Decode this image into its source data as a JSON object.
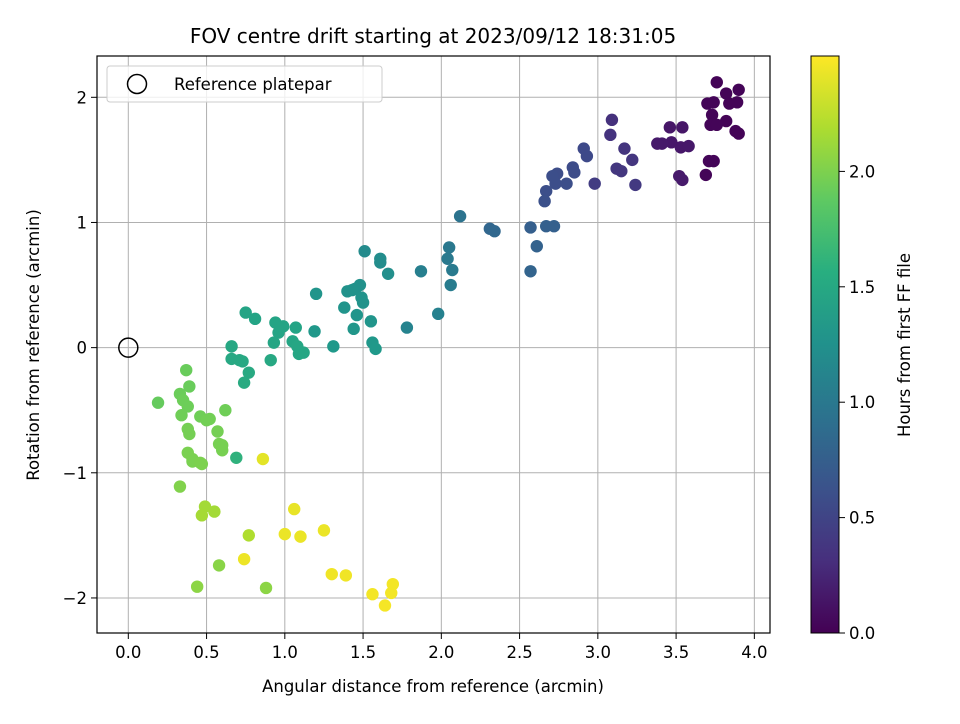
{
  "chart_data": {
    "type": "scatter",
    "title": "FOV centre drift starting at 2023/09/12 18:31:05",
    "xlabel": "Angular distance from reference (arcmin)",
    "ylabel": "Rotation from reference (arcmin)",
    "xlim": [
      -0.2,
      4.1
    ],
    "ylim": [
      -2.28,
      2.33
    ],
    "x_ticks": [
      0.0,
      0.5,
      1.0,
      1.5,
      2.0,
      2.5,
      3.0,
      3.5,
      4.0
    ],
    "x_tick_labels": [
      "0.0",
      "0.5",
      "1.0",
      "1.5",
      "2.0",
      "2.5",
      "3.0",
      "3.5",
      "4.0"
    ],
    "y_ticks": [
      -2,
      -1,
      0,
      1,
      2
    ],
    "y_tick_labels": [
      "−2",
      "−1",
      "0",
      "1",
      "2"
    ],
    "grid": true,
    "legend": {
      "position": "top-left",
      "entries": [
        "Reference platepar"
      ]
    },
    "reference_point": {
      "x": 0.0,
      "y": 0.0
    },
    "colorbar": {
      "label": "Hours from first FF file",
      "colormap": "viridis",
      "range": [
        0.0,
        2.5
      ],
      "ticks": [
        0.0,
        0.5,
        1.0,
        1.5,
        2.0
      ],
      "tick_labels": [
        "0.0",
        "0.5",
        "1.0",
        "1.5",
        "2.0"
      ]
    },
    "points": [
      [
        3.76,
        2.12,
        0.02
      ],
      [
        3.9,
        2.06,
        0.02
      ],
      [
        3.82,
        2.03,
        0.02
      ],
      [
        3.7,
        1.95,
        0.03
      ],
      [
        3.74,
        1.96,
        0.03
      ],
      [
        3.84,
        1.95,
        0.02
      ],
      [
        3.89,
        1.96,
        0.02
      ],
      [
        3.73,
        1.86,
        0.03
      ],
      [
        3.72,
        1.78,
        0.03
      ],
      [
        3.82,
        1.81,
        0.02
      ],
      [
        3.76,
        1.78,
        0.03
      ],
      [
        3.88,
        1.73,
        0.02
      ],
      [
        3.9,
        1.71,
        0.02
      ],
      [
        3.71,
        1.49,
        0.03
      ],
      [
        3.74,
        1.49,
        0.03
      ],
      [
        3.69,
        1.38,
        0.03
      ],
      [
        3.54,
        1.76,
        0.15
      ],
      [
        3.46,
        1.76,
        0.15
      ],
      [
        3.47,
        1.64,
        0.16
      ],
      [
        3.41,
        1.63,
        0.17
      ],
      [
        3.38,
        1.63,
        0.17
      ],
      [
        3.53,
        1.6,
        0.16
      ],
      [
        3.58,
        1.61,
        0.16
      ],
      [
        3.52,
        1.37,
        0.18
      ],
      [
        3.54,
        1.34,
        0.18
      ],
      [
        3.09,
        1.82,
        0.35
      ],
      [
        3.08,
        1.7,
        0.37
      ],
      [
        3.17,
        1.59,
        0.38
      ],
      [
        3.22,
        1.5,
        0.39
      ],
      [
        3.12,
        1.43,
        0.4
      ],
      [
        3.15,
        1.41,
        0.4
      ],
      [
        3.24,
        1.3,
        0.42
      ],
      [
        2.98,
        1.31,
        0.44
      ],
      [
        2.91,
        1.59,
        0.55
      ],
      [
        2.93,
        1.53,
        0.55
      ],
      [
        2.84,
        1.44,
        0.57
      ],
      [
        2.85,
        1.4,
        0.57
      ],
      [
        2.74,
        1.39,
        0.58
      ],
      [
        2.71,
        1.37,
        0.59
      ],
      [
        2.8,
        1.31,
        0.59
      ],
      [
        2.73,
        1.31,
        0.59
      ],
      [
        2.67,
        1.25,
        0.6
      ],
      [
        2.66,
        1.17,
        0.61
      ],
      [
        2.57,
        0.96,
        0.75
      ],
      [
        2.67,
        0.97,
        0.76
      ],
      [
        2.72,
        0.97,
        0.76
      ],
      [
        2.61,
        0.81,
        0.78
      ],
      [
        2.57,
        0.61,
        0.8
      ],
      [
        2.31,
        0.95,
        0.82
      ],
      [
        2.34,
        0.93,
        0.83
      ],
      [
        2.12,
        1.05,
        0.95
      ],
      [
        2.05,
        0.8,
        1.0
      ],
      [
        2.04,
        0.71,
        1.02
      ],
      [
        2.07,
        0.62,
        1.03
      ],
      [
        2.06,
        0.5,
        1.05
      ],
      [
        1.87,
        0.61,
        1.08
      ],
      [
        1.98,
        0.27,
        1.1
      ],
      [
        1.78,
        0.16,
        1.12
      ],
      [
        1.51,
        0.77,
        1.2
      ],
      [
        1.61,
        0.71,
        1.22
      ],
      [
        1.61,
        0.68,
        1.22
      ],
      [
        1.66,
        0.59,
        1.24
      ],
      [
        1.48,
        0.5,
        1.26
      ],
      [
        1.45,
        0.47,
        1.26
      ],
      [
        1.43,
        0.46,
        1.27
      ],
      [
        1.4,
        0.45,
        1.27
      ],
      [
        1.49,
        0.4,
        1.28
      ],
      [
        1.5,
        0.36,
        1.28
      ],
      [
        1.38,
        0.32,
        1.29
      ],
      [
        1.46,
        0.26,
        1.3
      ],
      [
        1.55,
        0.21,
        1.3
      ],
      [
        1.44,
        0.15,
        1.31
      ],
      [
        1.2,
        0.43,
        1.3
      ],
      [
        1.19,
        0.13,
        1.33
      ],
      [
        1.31,
        0.01,
        1.34
      ],
      [
        1.56,
        0.04,
        1.33
      ],
      [
        1.58,
        -0.01,
        1.34
      ],
      [
        0.75,
        0.28,
        1.45
      ],
      [
        0.81,
        0.23,
        1.45
      ],
      [
        0.94,
        0.2,
        1.45
      ],
      [
        0.99,
        0.17,
        1.45
      ],
      [
        0.96,
        0.12,
        1.46
      ],
      [
        1.07,
        0.16,
        1.45
      ],
      [
        0.93,
        0.04,
        1.47
      ],
      [
        1.05,
        0.05,
        1.47
      ],
      [
        1.08,
        0.01,
        1.48
      ],
      [
        1.12,
        -0.04,
        1.48
      ],
      [
        1.09,
        -0.05,
        1.48
      ],
      [
        0.66,
        0.01,
        1.49
      ],
      [
        0.66,
        -0.09,
        1.5
      ],
      [
        0.71,
        -0.1,
        1.5
      ],
      [
        0.73,
        -0.11,
        1.5
      ],
      [
        0.91,
        -0.1,
        1.5
      ],
      [
        0.77,
        -0.2,
        1.51
      ],
      [
        0.74,
        -0.28,
        1.52
      ],
      [
        0.69,
        -0.88,
        1.6
      ],
      [
        0.19,
        -0.44,
        1.9
      ],
      [
        0.37,
        -0.18,
        1.92
      ],
      [
        0.39,
        -0.31,
        1.92
      ],
      [
        0.33,
        -0.37,
        1.93
      ],
      [
        0.35,
        -0.42,
        1.94
      ],
      [
        0.38,
        -0.47,
        1.94
      ],
      [
        0.34,
        -0.54,
        1.95
      ],
      [
        0.46,
        -0.55,
        1.95
      ],
      [
        0.62,
        -0.5,
        1.95
      ],
      [
        0.52,
        -0.57,
        1.96
      ],
      [
        0.5,
        -0.58,
        1.96
      ],
      [
        0.38,
        -0.65,
        1.97
      ],
      [
        0.39,
        -0.69,
        1.97
      ],
      [
        0.57,
        -0.67,
        1.97
      ],
      [
        0.58,
        -0.77,
        1.98
      ],
      [
        0.6,
        -0.78,
        1.98
      ],
      [
        0.6,
        -0.82,
        1.98
      ],
      [
        0.38,
        -0.84,
        1.99
      ],
      [
        0.41,
        -0.89,
        1.99
      ],
      [
        0.41,
        -0.91,
        1.99
      ],
      [
        0.46,
        -0.92,
        2.0
      ],
      [
        0.47,
        -0.93,
        2.0
      ],
      [
        0.33,
        -1.11,
        2.02
      ],
      [
        0.58,
        -1.74,
        2.05
      ],
      [
        0.44,
        -1.91,
        2.06
      ],
      [
        0.88,
        -1.92,
        2.06
      ],
      [
        0.49,
        -1.27,
        2.15
      ],
      [
        0.55,
        -1.31,
        2.15
      ],
      [
        0.47,
        -1.34,
        2.16
      ],
      [
        0.77,
        -1.5,
        2.2
      ],
      [
        0.86,
        -0.89,
        2.4
      ],
      [
        1.06,
        -1.29,
        2.42
      ],
      [
        1.0,
        -1.49,
        2.43
      ],
      [
        1.1,
        -1.51,
        2.43
      ],
      [
        1.25,
        -1.46,
        2.43
      ],
      [
        0.74,
        -1.69,
        2.44
      ],
      [
        1.3,
        -1.81,
        2.45
      ],
      [
        1.39,
        -1.82,
        2.45
      ],
      [
        1.56,
        -1.97,
        2.46
      ],
      [
        1.64,
        -2.06,
        2.47
      ],
      [
        1.69,
        -1.89,
        2.46
      ],
      [
        1.68,
        -1.96,
        2.46
      ]
    ]
  }
}
